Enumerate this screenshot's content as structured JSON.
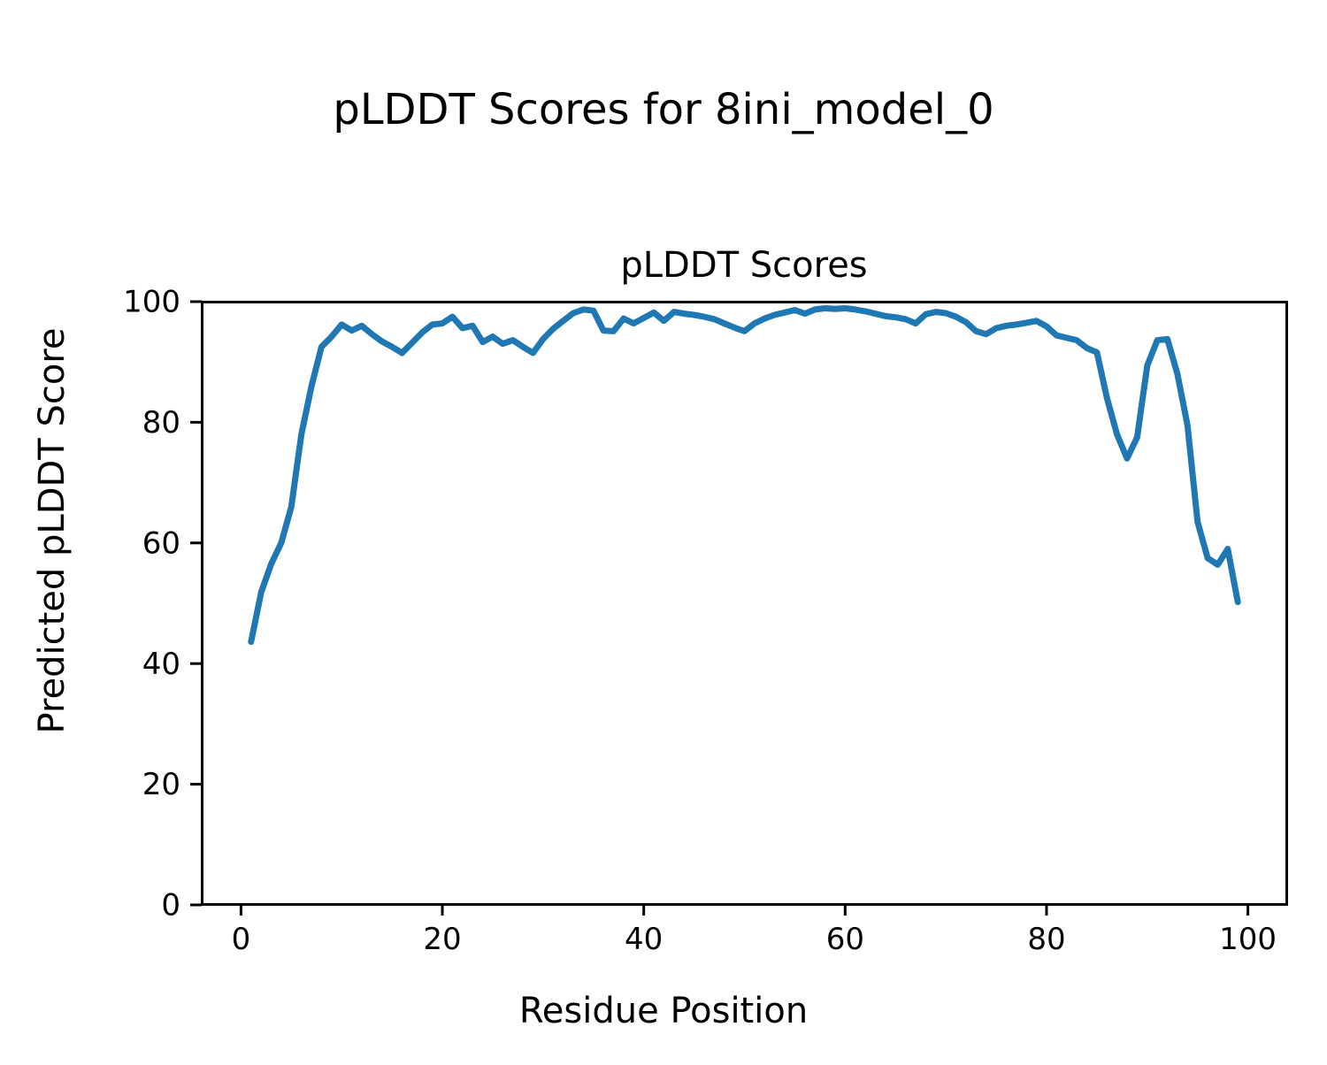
{
  "figure": {
    "suptitle": "pLDDT Scores for 8ini_model_0",
    "background": "#ffffff"
  },
  "chart_data": {
    "type": "line",
    "title": "pLDDT Scores",
    "xlabel": "Residue Position",
    "ylabel": "Predicted pLDDT Score",
    "xlim": [
      -3.9,
      103.9
    ],
    "ylim": [
      0,
      100
    ],
    "xticks": [
      0,
      20,
      40,
      60,
      80,
      100
    ],
    "yticks": [
      0,
      20,
      40,
      60,
      80,
      100
    ],
    "grid": false,
    "legend": "none",
    "line_color": "#1f77b4",
    "axis_color": "#000000",
    "x": [
      1,
      2,
      3,
      4,
      5,
      6,
      7,
      8,
      9,
      10,
      11,
      12,
      13,
      14,
      15,
      16,
      17,
      18,
      19,
      20,
      21,
      22,
      23,
      24,
      25,
      26,
      27,
      28,
      29,
      30,
      31,
      32,
      33,
      34,
      35,
      36,
      37,
      38,
      39,
      40,
      41,
      42,
      43,
      44,
      45,
      46,
      47,
      48,
      49,
      50,
      51,
      52,
      53,
      54,
      55,
      56,
      57,
      58,
      59,
      60,
      61,
      62,
      63,
      64,
      65,
      66,
      67,
      68,
      69,
      70,
      71,
      72,
      73,
      74,
      75,
      76,
      77,
      78,
      79,
      80,
      81,
      82,
      83,
      84,
      85,
      86,
      87,
      88,
      89,
      90,
      91,
      92,
      93,
      94,
      95,
      96,
      97,
      98,
      99
    ],
    "series": [
      {
        "name": "pLDDT",
        "values": [
          43.6,
          51.8,
          56.5,
          60.0,
          66.0,
          78.0,
          86.0,
          92.5,
          94.2,
          96.2,
          95.2,
          96.0,
          94.6,
          93.4,
          92.5,
          91.5,
          93.2,
          94.9,
          96.2,
          96.4,
          97.5,
          95.6,
          96.0,
          93.3,
          94.2,
          93.0,
          93.6,
          92.5,
          91.5,
          93.8,
          95.5,
          96.8,
          98.1,
          98.7,
          98.5,
          95.2,
          95.1,
          97.2,
          96.4,
          97.3,
          98.2,
          96.8,
          98.3,
          98.0,
          97.8,
          97.5,
          97.1,
          96.4,
          95.7,
          95.1,
          96.4,
          97.2,
          97.8,
          98.2,
          98.6,
          98.0,
          98.7,
          98.9,
          98.8,
          98.9,
          98.7,
          98.4,
          98.0,
          97.6,
          97.4,
          97.1,
          96.4,
          97.9,
          98.3,
          98.1,
          97.5,
          96.6,
          95.1,
          94.6,
          95.6,
          96.0,
          96.2,
          96.5,
          96.8,
          95.9,
          94.4,
          94.0,
          93.6,
          92.3,
          91.6,
          84.0,
          78.0,
          74.0,
          77.5,
          89.4,
          93.6,
          93.8,
          88.0,
          79.5,
          63.5,
          57.5,
          56.4,
          59.0,
          50.2
        ]
      }
    ]
  }
}
